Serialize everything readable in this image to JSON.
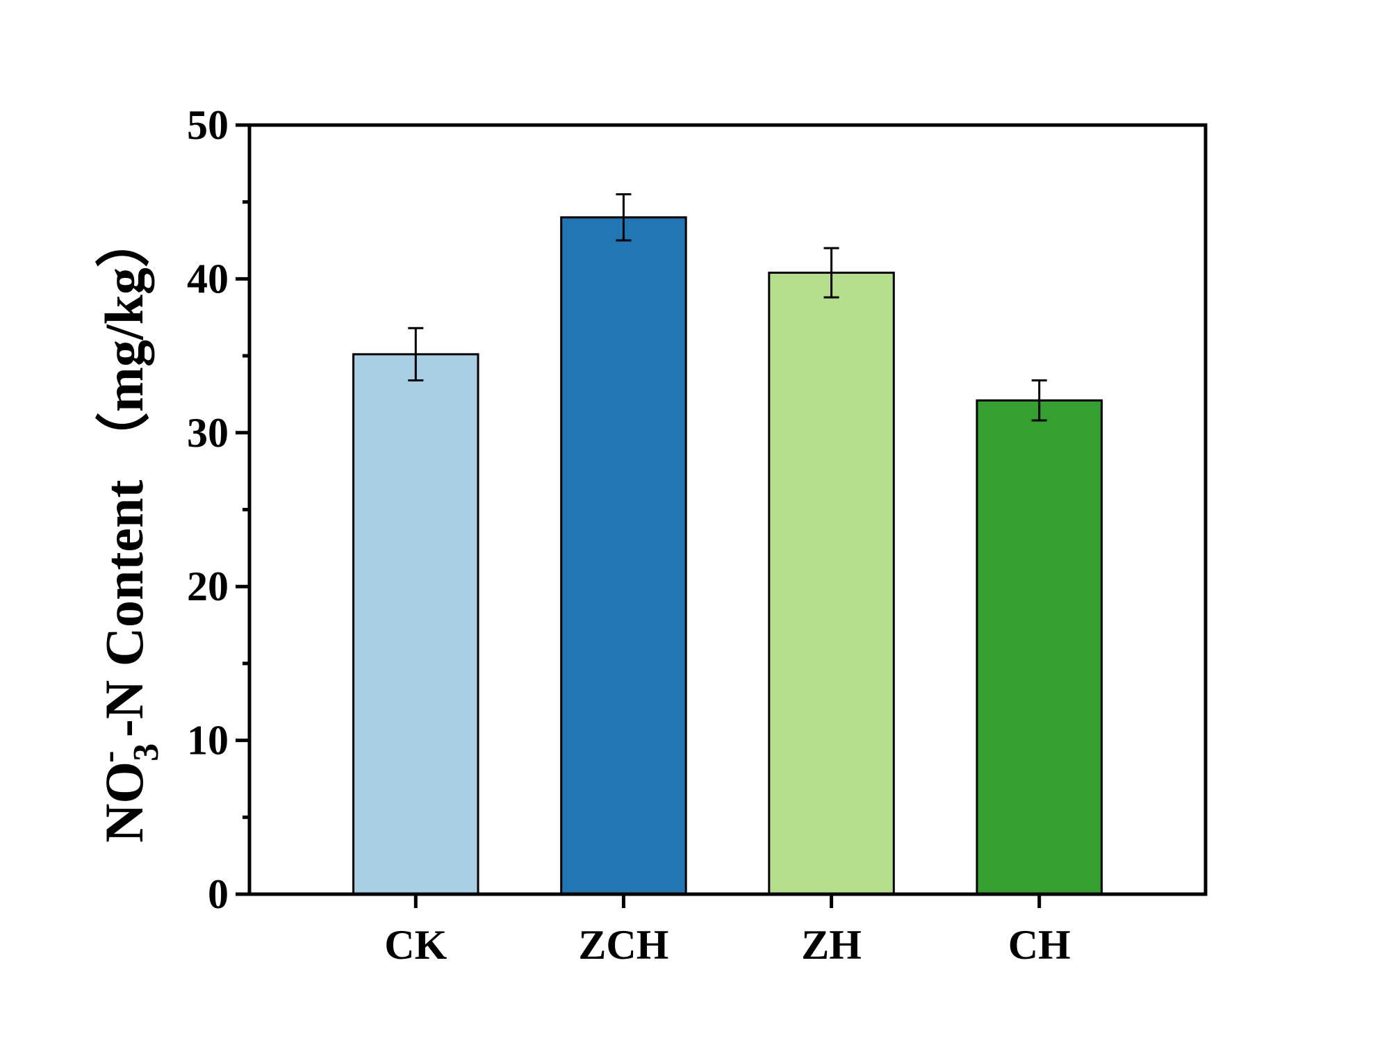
{
  "chart_data": {
    "type": "bar",
    "title": "",
    "xlabel": "",
    "ylabel": {
      "prefix": "NO",
      "subscript": "3",
      "superscript": "-",
      "suffix": " -N Content （mg/kg）"
    },
    "categories": [
      "CK",
      "ZCH",
      "ZH",
      "CH"
    ],
    "values": [
      35.1,
      44.0,
      40.4,
      32.1
    ],
    "errors": [
      1.7,
      1.5,
      1.6,
      1.3
    ],
    "colors": [
      "#a8cfe3",
      "#2176b3",
      "#b4de8c",
      "#359f30"
    ],
    "ylim": [
      0,
      50
    ],
    "yticks": [
      "0",
      "10",
      "20",
      "30",
      "40",
      "50"
    ],
    "ytick_values": [
      0,
      10,
      20,
      30,
      40,
      50
    ],
    "minor_ytick_values": [
      5,
      15,
      25,
      35,
      45
    ],
    "grid": false
  }
}
